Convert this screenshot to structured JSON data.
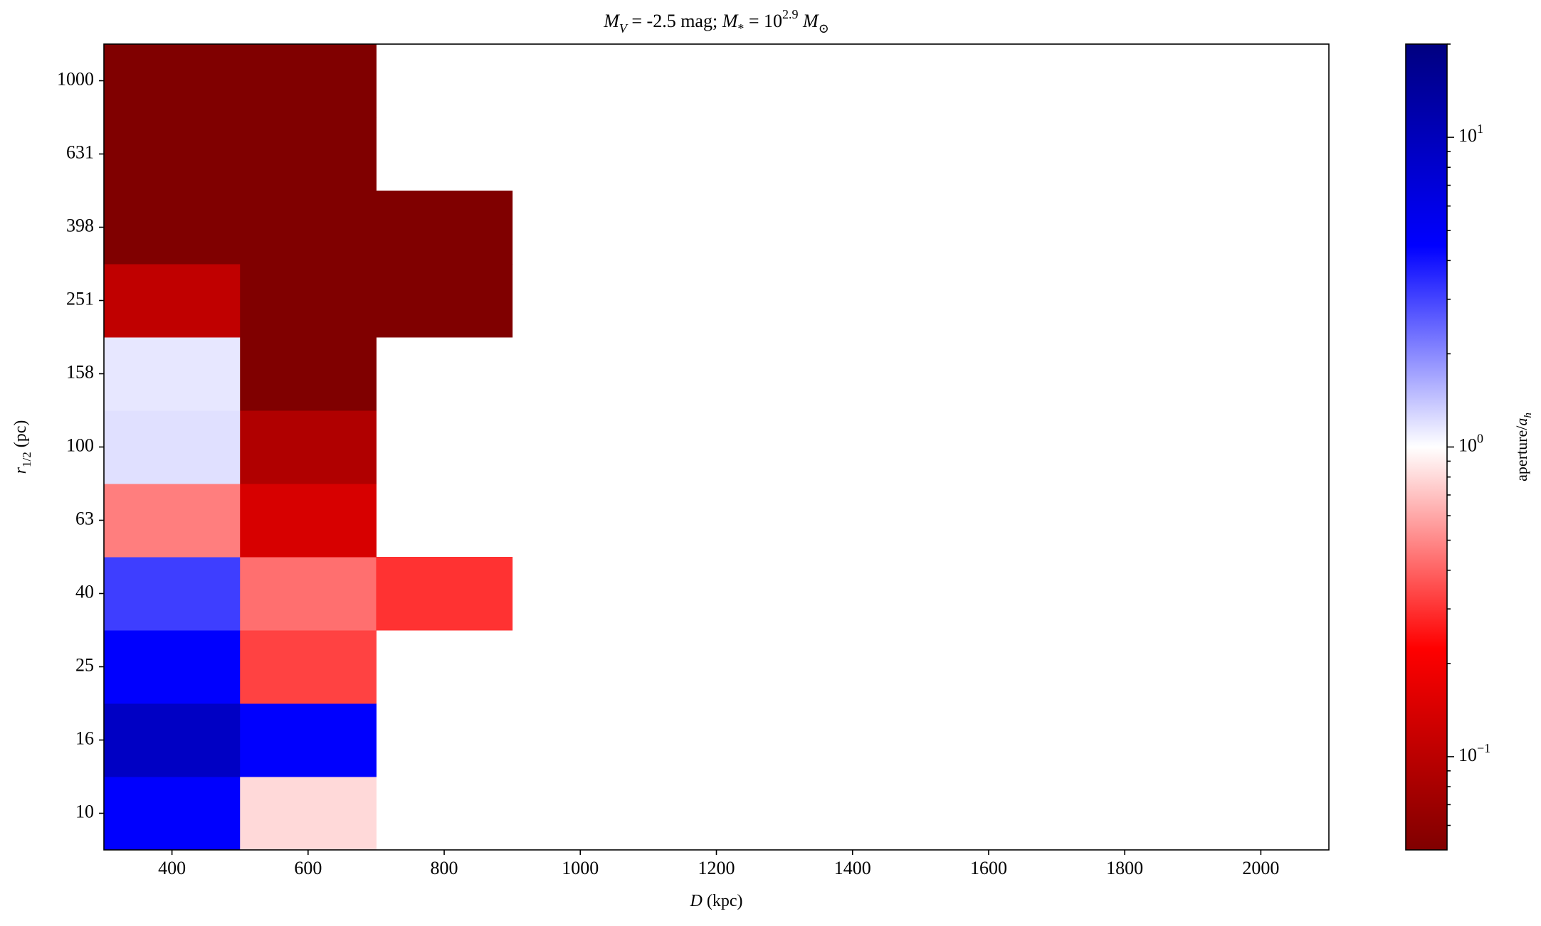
{
  "chart_data": {
    "type": "heatmap",
    "title": [
      {
        "text": "M",
        "italic": true
      },
      {
        "text": "V",
        "italic": true,
        "sub": true
      },
      {
        "text": " = -2.5 mag; "
      },
      {
        "text": "M",
        "italic": true
      },
      {
        "text": "*",
        "sub": true
      },
      {
        "text": " = 10"
      },
      {
        "text": "2.9",
        "sup": true
      },
      {
        "text": " M",
        "italic": true
      },
      {
        "text": "⊙",
        "sub": true
      }
    ],
    "xlabel": [
      {
        "text": "D",
        "italic": true
      },
      {
        "text": " (kpc)"
      }
    ],
    "ylabel": [
      {
        "text": "r",
        "italic": true
      },
      {
        "text": "1/2",
        "sub": true
      },
      {
        "text": " (pc)"
      }
    ],
    "colorbar_label": [
      {
        "text": "aperture/"
      },
      {
        "text": "a",
        "italic": true
      },
      {
        "text": "h",
        "italic": true,
        "sub": true
      }
    ],
    "x": [
      400,
      600,
      800,
      1000,
      1200,
      1400,
      1600,
      1800,
      2000
    ],
    "categories": [
      "10",
      "16",
      "25",
      "40",
      "63",
      "100",
      "158",
      "251",
      "398",
      "631",
      "1000"
    ],
    "values": [
      [
        4.5,
        0.8,
        null,
        null,
        null,
        null,
        null,
        null,
        null
      ],
      [
        9,
        4.5,
        null,
        null,
        null,
        null,
        null,
        null,
        null
      ],
      [
        4.5,
        0.33,
        null,
        null,
        null,
        null,
        null,
        null,
        null
      ],
      [
        3.1,
        0.43,
        0.3,
        null,
        null,
        null,
        null,
        null,
        null
      ],
      [
        0.47,
        0.14,
        null,
        null,
        null,
        null,
        null,
        null,
        null
      ],
      [
        1.2,
        0.088,
        null,
        null,
        null,
        null,
        null,
        null,
        null
      ],
      [
        1.15,
        0.05,
        null,
        null,
        null,
        null,
        null,
        null,
        null
      ],
      [
        0.106,
        0.05,
        0.05,
        null,
        null,
        null,
        null,
        null,
        null
      ],
      [
        0.05,
        0.05,
        0.05,
        null,
        null,
        null,
        null,
        null,
        null
      ],
      [
        0.05,
        0.05,
        null,
        null,
        null,
        null,
        null,
        null,
        null
      ],
      [
        0.05,
        0.05,
        null,
        null,
        null,
        null,
        null,
        null,
        null
      ]
    ],
    "xlim": [
      300,
      2100
    ],
    "xticks": [
      400,
      600,
      800,
      1000,
      1200,
      1400,
      1600,
      1800,
      2000
    ],
    "clim": [
      0.05,
      20
    ],
    "clog": true,
    "colorscale": [
      "#800000",
      "#ff0000",
      "#ffffff",
      "#0000ff",
      "#000080"
    ],
    "cticks": [
      {
        "value": 0.1,
        "label": "10",
        "sup": "−1"
      },
      {
        "value": 1,
        "label": "10",
        "sup": "0"
      },
      {
        "value": 10,
        "label": "10",
        "sup": "1"
      }
    ],
    "cticks_minor": [
      0.06,
      0.07,
      0.08,
      0.09,
      0.2,
      0.3,
      0.4,
      0.5,
      0.6,
      0.7,
      0.8,
      0.9,
      2,
      3,
      4,
      5,
      6,
      7,
      8,
      9,
      20
    ]
  }
}
